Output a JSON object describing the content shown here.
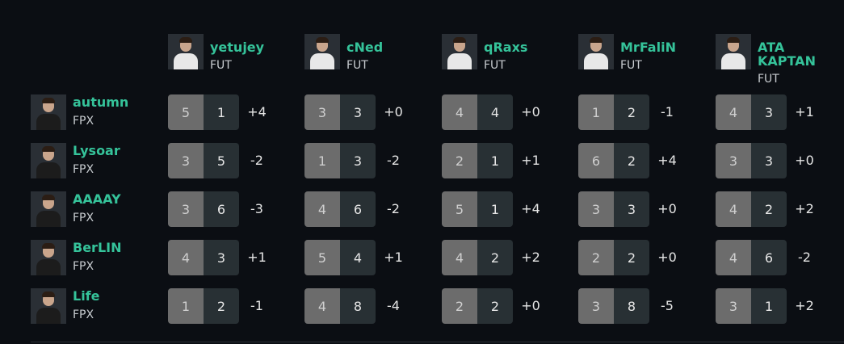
{
  "columns": [
    {
      "name": "yetujey",
      "team": "FUT"
    },
    {
      "name": "cNed",
      "team": "FUT"
    },
    {
      "name": "qRaxs",
      "team": "FUT"
    },
    {
      "name": "MrFaliN",
      "team": "FUT"
    },
    {
      "name": "ATA KAPTAN",
      "team": "FUT"
    }
  ],
  "rows": [
    {
      "name": "autumn",
      "team": "FPX",
      "cells": [
        [
          5,
          1,
          "+4"
        ],
        [
          3,
          3,
          "+0"
        ],
        [
          4,
          4,
          "+0"
        ],
        [
          1,
          2,
          "-1"
        ],
        [
          4,
          3,
          "+1"
        ]
      ]
    },
    {
      "name": "Lysoar",
      "team": "FPX",
      "cells": [
        [
          3,
          5,
          "-2"
        ],
        [
          1,
          3,
          "-2"
        ],
        [
          2,
          1,
          "+1"
        ],
        [
          6,
          2,
          "+4"
        ],
        [
          3,
          3,
          "+0"
        ]
      ]
    },
    {
      "name": "AAAAY",
      "team": "FPX",
      "cells": [
        [
          3,
          6,
          "-3"
        ],
        [
          4,
          6,
          "-2"
        ],
        [
          5,
          1,
          "+4"
        ],
        [
          3,
          3,
          "+0"
        ],
        [
          4,
          2,
          "+2"
        ]
      ]
    },
    {
      "name": "BerLIN",
      "team": "FPX",
      "cells": [
        [
          4,
          3,
          "+1"
        ],
        [
          5,
          4,
          "+1"
        ],
        [
          4,
          2,
          "+2"
        ],
        [
          2,
          2,
          "+0"
        ],
        [
          4,
          6,
          "-2"
        ]
      ]
    },
    {
      "name": "Life",
      "team": "FPX",
      "cells": [
        [
          1,
          2,
          "-1"
        ],
        [
          4,
          8,
          "-4"
        ],
        [
          2,
          2,
          "+0"
        ],
        [
          3,
          8,
          "-5"
        ],
        [
          3,
          1,
          "+2"
        ]
      ]
    }
  ]
}
